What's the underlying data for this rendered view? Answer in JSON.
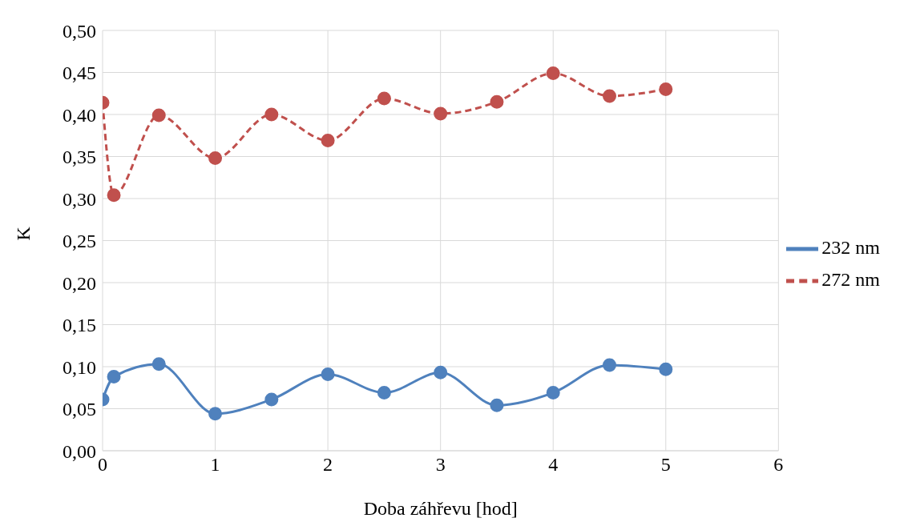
{
  "chart_data": {
    "type": "line",
    "xlabel": "Doba záhřevu [hod]",
    "ylabel": "K",
    "x": [
      0,
      0.1,
      0.5,
      1,
      1.5,
      2,
      2.5,
      3,
      3.5,
      4,
      4.5,
      5
    ],
    "series": [
      {
        "name": "232 nm",
        "color": "#4f81bd",
        "line_style": "solid",
        "values": [
          0.061,
          0.088,
          0.103,
          0.044,
          0.061,
          0.091,
          0.069,
          0.093,
          0.054,
          0.069,
          0.102,
          0.097
        ]
      },
      {
        "name": "272 nm",
        "color": "#c0504d",
        "line_style": "dashed",
        "values": [
          0.414,
          0.304,
          0.399,
          0.348,
          0.4,
          0.369,
          0.419,
          0.401,
          0.415,
          0.449,
          0.422,
          0.43
        ]
      }
    ],
    "xlim": [
      0,
      6
    ],
    "xticks": [
      0,
      1,
      2,
      3,
      4,
      5,
      6
    ],
    "ylim": [
      0,
      0.5
    ],
    "yticks": [
      {
        "value": 0,
        "label": "0,00"
      },
      {
        "value": 0.05,
        "label": "0,05"
      },
      {
        "value": 0.1,
        "label": "0,10"
      },
      {
        "value": 0.15,
        "label": "0,15"
      },
      {
        "value": 0.2,
        "label": "0,20"
      },
      {
        "value": 0.25,
        "label": "0,25"
      },
      {
        "value": 0.3,
        "label": "0,30"
      },
      {
        "value": 0.35,
        "label": "0,35"
      },
      {
        "value": 0.4,
        "label": "0,40"
      },
      {
        "value": 0.45,
        "label": "0,45"
      },
      {
        "value": 0.5,
        "label": "0,50"
      }
    ],
    "grid": true,
    "legend": "right",
    "marker": "circle"
  }
}
